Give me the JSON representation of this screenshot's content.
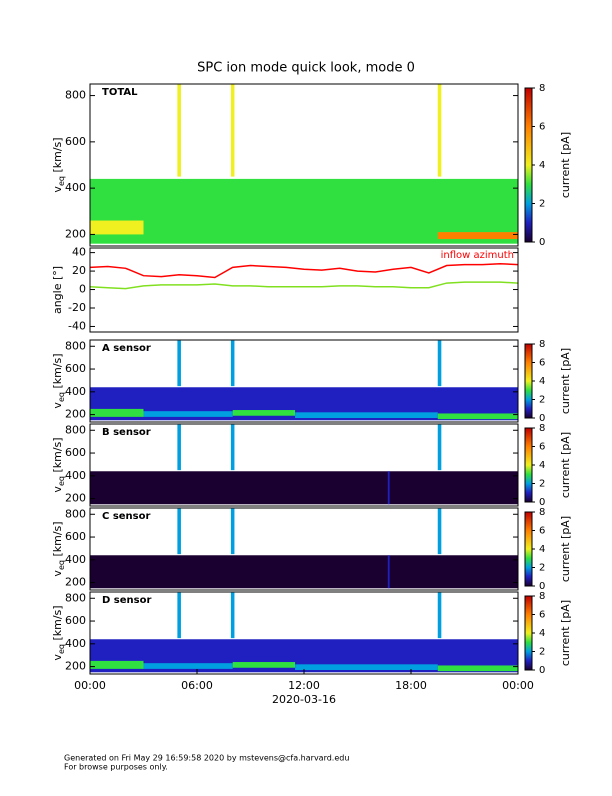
{
  "title": "SPC ion mode quick look, mode 0",
  "colormap": [
    {
      "value": 0,
      "color": "#1a0030"
    },
    {
      "value": 1,
      "color": "#2020c0"
    },
    {
      "value": 2,
      "color": "#00a0e0"
    },
    {
      "value": 3,
      "color": "#30e040"
    },
    {
      "value": 4,
      "color": "#f0f020"
    },
    {
      "value": 6,
      "color": "#ff8000"
    },
    {
      "value": 8,
      "color": "#c00000"
    }
  ],
  "chart_data": [
    {
      "type": "heatmap",
      "label": "TOTAL",
      "ylabel": {
        "main": "v",
        "sub": "eq",
        "unit": " [km/s]"
      },
      "xlim": [
        0,
        24
      ],
      "ylim": [
        150,
        850
      ],
      "yticks": [
        200,
        400,
        600,
        800
      ],
      "colorbar": {
        "label": "current [pA]",
        "lim": [
          0,
          8
        ],
        "ticks": [
          0,
          2,
          4,
          6,
          8
        ]
      },
      "cells": [
        {
          "x": [
            0,
            24
          ],
          "y": [
            160,
            440
          ],
          "value": 3
        },
        {
          "x": [
            0,
            3
          ],
          "y": [
            200,
            260
          ],
          "value": 4
        },
        {
          "x": [
            3,
            8
          ],
          "y": [
            200,
            240
          ],
          "value": 3.5
        },
        {
          "x": [
            8,
            11.5
          ],
          "y": [
            200,
            250
          ],
          "value": 3.8
        },
        {
          "x": [
            11.5,
            19.5
          ],
          "y": [
            190,
            230
          ],
          "value": 3.3
        },
        {
          "x": [
            19.5,
            24
          ],
          "y": [
            180,
            210
          ],
          "value": 6.5
        },
        {
          "x": [
            4.9,
            5.1
          ],
          "y": [
            450,
            850
          ],
          "value": 4.5
        },
        {
          "x": [
            7.9,
            8.1
          ],
          "y": [
            450,
            850
          ],
          "value": 4.5
        },
        {
          "x": [
            19.5,
            19.7
          ],
          "y": [
            450,
            850
          ],
          "value": 4.5
        }
      ]
    },
    {
      "type": "line",
      "ylabel": "angle [°]",
      "annotation": "inflow azimuth",
      "xlim": [
        0,
        24
      ],
      "ylim": [
        -46,
        45
      ],
      "yticks": [
        -40,
        -20,
        0,
        20,
        40
      ],
      "x": [
        0,
        1,
        2,
        3,
        4,
        5,
        6,
        7,
        8,
        9,
        10,
        11,
        12,
        13,
        14,
        15,
        16,
        17,
        18,
        19,
        20,
        21,
        22,
        23,
        24
      ],
      "series": [
        {
          "color": "#ff0000",
          "values": [
            24,
            25,
            23,
            15,
            14,
            16,
            15,
            13,
            24,
            26,
            25,
            24,
            22,
            21,
            23,
            20,
            19,
            22,
            24,
            18,
            26,
            27,
            27,
            28,
            27
          ]
        },
        {
          "color": "#80e020",
          "values": [
            3,
            2,
            1,
            4,
            5,
            5,
            5,
            6,
            4,
            4,
            3,
            3,
            3,
            3,
            4,
            4,
            3,
            3,
            2,
            2,
            7,
            8,
            8,
            8,
            7
          ]
        }
      ]
    },
    {
      "type": "heatmap",
      "label": "A sensor",
      "ylabel": {
        "main": "v",
        "sub": "eq",
        "unit": " [km/s]"
      },
      "xlim": [
        0,
        24
      ],
      "ylim": [
        135,
        855
      ],
      "yticks": [
        200,
        400,
        600,
        800
      ],
      "colorbar": {
        "label": "current [pA]",
        "lim": [
          0,
          8
        ],
        "ticks": [
          0,
          2,
          4,
          6,
          8
        ]
      },
      "cells": [
        {
          "x": [
            0,
            24
          ],
          "y": [
            150,
            440
          ],
          "value": 1.3
        },
        {
          "x": [
            0,
            3
          ],
          "y": [
            180,
            250
          ],
          "value": 3.2
        },
        {
          "x": [
            3,
            8
          ],
          "y": [
            180,
            230
          ],
          "value": 2.2
        },
        {
          "x": [
            8,
            11.5
          ],
          "y": [
            190,
            240
          ],
          "value": 3.2
        },
        {
          "x": [
            11.5,
            19.5
          ],
          "y": [
            170,
            220
          ],
          "value": 2
        },
        {
          "x": [
            19.5,
            24
          ],
          "y": [
            160,
            210
          ],
          "value": 3
        },
        {
          "x": [
            4.9,
            5.1
          ],
          "y": [
            450,
            850
          ],
          "value": 2.6
        },
        {
          "x": [
            7.9,
            8.1
          ],
          "y": [
            450,
            850
          ],
          "value": 2.6
        },
        {
          "x": [
            19.5,
            19.7
          ],
          "y": [
            450,
            850
          ],
          "value": 2.6
        }
      ]
    },
    {
      "type": "heatmap",
      "label": "B sensor",
      "ylabel": {
        "main": "v",
        "sub": "eq",
        "unit": " [km/s]"
      },
      "xlim": [
        0,
        24
      ],
      "ylim": [
        135,
        855
      ],
      "yticks": [
        200,
        400,
        600,
        800
      ],
      "colorbar": {
        "label": "current [pA]",
        "lim": [
          0,
          8
        ],
        "ticks": [
          0,
          2,
          4,
          6,
          8
        ]
      },
      "cells": [
        {
          "x": [
            0,
            24
          ],
          "y": [
            150,
            440
          ],
          "value": 0.4
        },
        {
          "x": [
            16.7,
            16.8
          ],
          "y": [
            150,
            440
          ],
          "value": 1.5
        },
        {
          "x": [
            4.9,
            5.1
          ],
          "y": [
            450,
            850
          ],
          "value": 2
        },
        {
          "x": [
            7.9,
            8.1
          ],
          "y": [
            450,
            850
          ],
          "value": 2
        },
        {
          "x": [
            19.5,
            19.7
          ],
          "y": [
            450,
            850
          ],
          "value": 2
        }
      ]
    },
    {
      "type": "heatmap",
      "label": "C sensor",
      "ylabel": {
        "main": "v",
        "sub": "eq",
        "unit": " [km/s]"
      },
      "xlim": [
        0,
        24
      ],
      "ylim": [
        135,
        855
      ],
      "yticks": [
        200,
        400,
        600,
        800
      ],
      "colorbar": {
        "label": "current [pA]",
        "lim": [
          0,
          8
        ],
        "ticks": [
          0,
          2,
          4,
          6,
          8
        ]
      },
      "cells": [
        {
          "x": [
            0,
            24
          ],
          "y": [
            150,
            440
          ],
          "value": 0.4
        },
        {
          "x": [
            16.7,
            16.8
          ],
          "y": [
            150,
            440
          ],
          "value": 1.5
        },
        {
          "x": [
            4.9,
            5.1
          ],
          "y": [
            450,
            850
          ],
          "value": 2
        },
        {
          "x": [
            7.9,
            8.1
          ],
          "y": [
            450,
            850
          ],
          "value": 2
        },
        {
          "x": [
            19.5,
            19.7
          ],
          "y": [
            450,
            850
          ],
          "value": 2
        }
      ]
    },
    {
      "type": "heatmap",
      "label": "D sensor",
      "ylabel": {
        "main": "v",
        "sub": "eq",
        "unit": " [km/s]"
      },
      "xlim": [
        0,
        24
      ],
      "ylim": [
        135,
        855
      ],
      "yticks": [
        200,
        400,
        600,
        800
      ],
      "xticks": [
        {
          "value": 0,
          "label": "00:00"
        },
        {
          "value": 6,
          "label": "06:00"
        },
        {
          "value": 12,
          "label": "12:00"
        },
        {
          "value": 18,
          "label": "18:00"
        },
        {
          "value": 24,
          "label": "00:00"
        }
      ],
      "xlabel": "2020-03-16",
      "colorbar": {
        "label": "current [pA]",
        "lim": [
          0,
          8
        ],
        "ticks": [
          0,
          2,
          4,
          6,
          8
        ]
      },
      "cells": [
        {
          "x": [
            0,
            24
          ],
          "y": [
            150,
            440
          ],
          "value": 1.3
        },
        {
          "x": [
            0,
            3
          ],
          "y": [
            180,
            250
          ],
          "value": 3.2
        },
        {
          "x": [
            3,
            8
          ],
          "y": [
            180,
            230
          ],
          "value": 2.2
        },
        {
          "x": [
            8,
            11.5
          ],
          "y": [
            190,
            240
          ],
          "value": 3.2
        },
        {
          "x": [
            11.5,
            19.5
          ],
          "y": [
            170,
            220
          ],
          "value": 2
        },
        {
          "x": [
            19.5,
            24
          ],
          "y": [
            160,
            210
          ],
          "value": 3
        },
        {
          "x": [
            4.9,
            5.1
          ],
          "y": [
            450,
            850
          ],
          "value": 2.6
        },
        {
          "x": [
            7.9,
            8.1
          ],
          "y": [
            450,
            850
          ],
          "value": 2.6
        },
        {
          "x": [
            19.5,
            19.7
          ],
          "y": [
            450,
            850
          ],
          "value": 2.6
        }
      ]
    }
  ],
  "footer": [
    "Generated on Fri May 29 16:59:58 2020 by mstevens@cfa.harvard.edu",
    "For browse purposes only."
  ]
}
